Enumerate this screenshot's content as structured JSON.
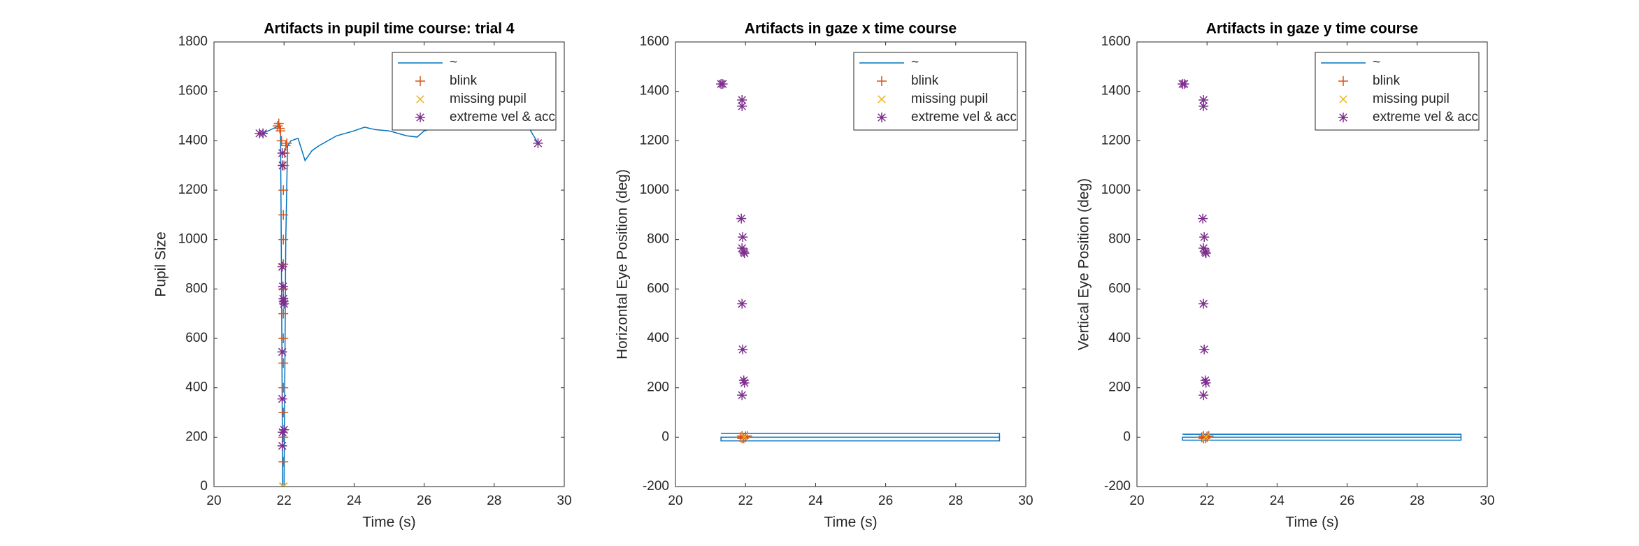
{
  "chart_data": [
    {
      "type": "line",
      "title": "Artifacts in pupil time course: trial 4",
      "x_label": "Time (s)",
      "y_label": "Pupil Size",
      "xlim": [
        20,
        30
      ],
      "xticks": [
        20,
        22,
        24,
        26,
        28,
        30
      ],
      "ylim": [
        0,
        1800
      ],
      "yticks": [
        0,
        200,
        400,
        600,
        800,
        1000,
        1200,
        1400,
        1600,
        1800
      ],
      "legend": "upper right",
      "series": [
        {
          "name": "~",
          "color": "#0072bd",
          "marker": "line",
          "x": [
            21.3,
            21.4,
            21.85,
            21.9,
            21.93,
            21.96,
            22.0,
            22.05,
            22.1,
            22.2,
            22.4,
            22.6,
            22.8,
            23.0,
            23.5,
            24.0,
            24.3,
            24.6,
            25.0,
            25.5,
            25.8,
            26.0,
            26.5,
            27.0,
            28.0,
            29.0,
            29.25
          ],
          "values": [
            1430,
            1430,
            1460,
            1440,
            800,
            0,
            0,
            1000,
            1380,
            1400,
            1410,
            1320,
            1360,
            1380,
            1420,
            1440,
            1455,
            1445,
            1440,
            1420,
            1415,
            1440,
            1460,
            1460,
            1455,
            1450,
            1390
          ]
        },
        {
          "name": "blink",
          "color": "#d95319",
          "marker": "plus",
          "x": [
            21.82,
            21.85,
            21.88,
            21.9,
            21.93,
            21.96,
            21.98,
            21.98,
            21.98,
            21.98,
            21.98,
            21.98,
            21.98,
            21.98,
            21.98,
            21.98,
            21.98,
            21.98,
            22.0,
            22.02,
            22.05,
            22.08
          ],
          "values": [
            1460,
            1470,
            1450,
            1440,
            1400,
            1300,
            1200,
            1100,
            1000,
            900,
            800,
            700,
            600,
            500,
            400,
            300,
            200,
            100,
            1300,
            1350,
            1380,
            1390
          ]
        },
        {
          "name": "missing pupil",
          "color": "#edb120",
          "marker": "x",
          "x": [
            21.97,
            21.99
          ],
          "values": [
            0,
            0
          ]
        },
        {
          "name": "extreme vel & acc",
          "color": "#7e2f8e",
          "marker": "star",
          "x": [
            21.3,
            21.4,
            21.95,
            21.96,
            21.95,
            21.97,
            21.98,
            21.99,
            22.0,
            21.95,
            21.95,
            22.0,
            21.96,
            21.95,
            29.25
          ],
          "values": [
            1430,
            1430,
            1350,
            1300,
            890,
            810,
            760,
            750,
            740,
            545,
            355,
            230,
            220,
            165,
            1390
          ]
        }
      ]
    },
    {
      "type": "line",
      "title": "Artifacts in gaze x time course",
      "x_label": "Time (s)",
      "y_label": "Horizontal Eye Position (deg)",
      "xlim": [
        20,
        30
      ],
      "xticks": [
        20,
        22,
        24,
        26,
        28,
        30
      ],
      "ylim": [
        -200,
        1600
      ],
      "yticks": [
        -200,
        0,
        200,
        400,
        600,
        800,
        1000,
        1200,
        1400,
        1600
      ],
      "legend": "upper right",
      "series": [
        {
          "name": "~",
          "color": "#0072bd",
          "marker": "line",
          "x": [
            21.3,
            29.25,
            29.25,
            21.3,
            21.3,
            29.25
          ],
          "values": [
            15,
            15,
            -15,
            -15,
            0,
            0
          ]
        },
        {
          "name": "blink",
          "color": "#d95319",
          "marker": "plus",
          "x": [
            21.85,
            21.9,
            21.95,
            22.0,
            22.05,
            21.9,
            22.0
          ],
          "values": [
            0,
            5,
            -5,
            0,
            5,
            -5,
            3
          ]
        },
        {
          "name": "missing pupil",
          "color": "#edb120",
          "marker": "x",
          "x": [
            21.97
          ],
          "values": [
            0
          ]
        },
        {
          "name": "extreme vel & acc",
          "color": "#7e2f8e",
          "marker": "star",
          "x": [
            21.3,
            21.35,
            21.9,
            21.9,
            21.88,
            21.92,
            21.9,
            21.95,
            21.97,
            21.9,
            21.92,
            21.95,
            21.97,
            21.9
          ],
          "values": [
            1430,
            1430,
            1365,
            1340,
            885,
            810,
            765,
            750,
            745,
            540,
            355,
            230,
            220,
            170
          ]
        }
      ]
    },
    {
      "type": "line",
      "title": "Artifacts in gaze y time course",
      "x_label": "Time (s)",
      "y_label": "Vertical Eye Position (deg)",
      "xlim": [
        20,
        30
      ],
      "xticks": [
        20,
        22,
        24,
        26,
        28,
        30
      ],
      "ylim": [
        -200,
        1600
      ],
      "yticks": [
        -200,
        0,
        200,
        400,
        600,
        800,
        1000,
        1200,
        1400,
        1600
      ],
      "legend": "upper right",
      "series": [
        {
          "name": "~",
          "color": "#0072bd",
          "marker": "line",
          "x": [
            21.3,
            29.25,
            29.25,
            21.3,
            21.3,
            29.25
          ],
          "values": [
            12,
            12,
            -12,
            -12,
            0,
            0
          ]
        },
        {
          "name": "blink",
          "color": "#d95319",
          "marker": "plus",
          "x": [
            21.85,
            21.9,
            21.95,
            22.0,
            22.05,
            21.9,
            22.0
          ],
          "values": [
            0,
            5,
            -5,
            0,
            5,
            -5,
            3
          ]
        },
        {
          "name": "missing pupil",
          "color": "#edb120",
          "marker": "x",
          "x": [
            21.97
          ],
          "values": [
            0
          ]
        },
        {
          "name": "extreme vel & acc",
          "color": "#7e2f8e",
          "marker": "star",
          "x": [
            21.3,
            21.35,
            21.9,
            21.9,
            21.88,
            21.92,
            21.9,
            21.95,
            21.97,
            21.9,
            21.92,
            21.95,
            21.97,
            21.9
          ],
          "values": [
            1430,
            1430,
            1365,
            1340,
            885,
            810,
            765,
            750,
            745,
            540,
            355,
            230,
            220,
            170
          ]
        }
      ]
    }
  ]
}
